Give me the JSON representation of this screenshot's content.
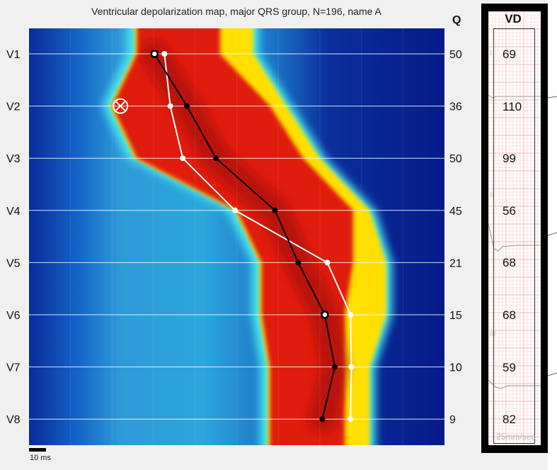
{
  "chart_data": {
    "type": "heatmap",
    "title": "Ventricular depolarization map, major QRS group, N=196, name A",
    "leads": [
      "V1",
      "V2",
      "V3",
      "V4",
      "V5",
      "V6",
      "V7",
      "V8"
    ],
    "q_header": "Q",
    "q_values": [
      50,
      36,
      50,
      45,
      21,
      15,
      10,
      9
    ],
    "scale_label": "10 ms",
    "heat_bands": [
      {
        "lead": "V1",
        "red_start": 13,
        "red_end": 23,
        "yellow_end": 27
      },
      {
        "lead": "V2",
        "red_start": 10,
        "red_end": 29,
        "yellow_end": 31
      },
      {
        "lead": "V3",
        "red_start": 13,
        "red_end": 33,
        "yellow_end": 35
      },
      {
        "lead": "V4",
        "red_start": 25,
        "red_end": 39,
        "yellow_end": 41
      },
      {
        "lead": "V5",
        "red_start": 28,
        "red_end": 39,
        "yellow_end": 43
      },
      {
        "lead": "V6",
        "red_start": 28,
        "red_end": 38,
        "yellow_end": 43
      },
      {
        "lead": "V7",
        "red_start": 29,
        "red_end": 38,
        "yellow_end": 41
      },
      {
        "lead": "V8",
        "red_start": 29,
        "red_end": 38,
        "yellow_end": 41
      }
    ],
    "series": [
      {
        "color": "#000000",
        "values": [
          15.1,
          19.0,
          22.5,
          29.6,
          32.4,
          35.6,
          36.8,
          35.3
        ]
      },
      {
        "color": "#ffffff",
        "values": [
          16.3,
          17.0,
          18.5,
          24.8,
          35.9,
          38.7,
          38.8,
          38.7
        ]
      }
    ],
    "open_markers": [
      {
        "series": 0,
        "lead": "V1"
      },
      {
        "series": 0,
        "lead": "V6"
      }
    ],
    "special_marker": {
      "lead": "V2",
      "x": 11,
      "symbol": "circle-x"
    },
    "x_range_ms": [
      0,
      50
    ]
  },
  "vd_panel": {
    "header": "VD",
    "values": [
      69,
      110,
      99,
      56,
      68,
      68,
      59,
      82
    ],
    "ecg_speed": "25mm/sec",
    "lead_marks": [
      "I",
      "II",
      "III"
    ]
  },
  "colors": {
    "background": "#f0f0f0",
    "map_blue_dark": "#0a1f8f",
    "map_cyan": "#3fe0e8",
    "map_yellow": "#ffe000",
    "map_red": "#d01010"
  }
}
